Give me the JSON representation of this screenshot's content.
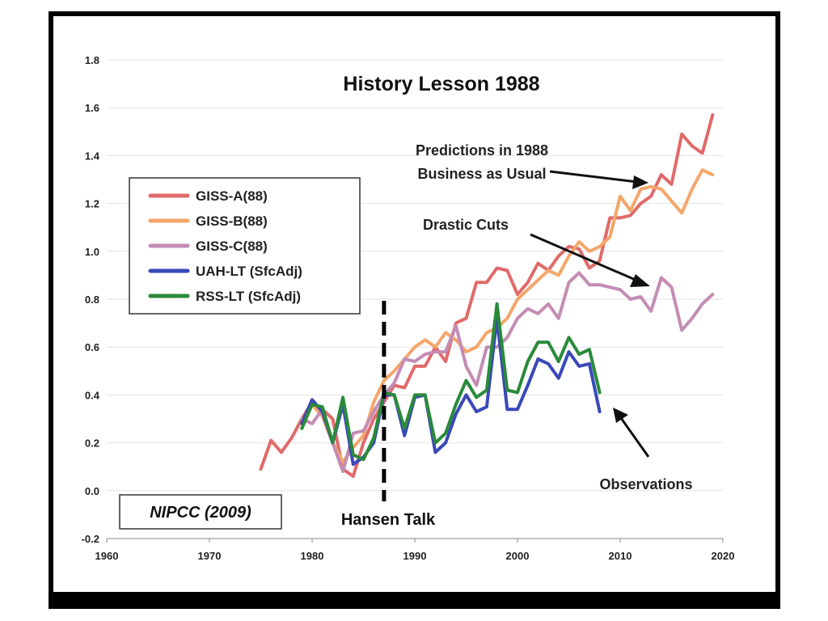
{
  "chart_data": {
    "type": "line",
    "title": "History Lesson 1988",
    "xlabel": "",
    "ylabel": "",
    "xlim": [
      1960,
      2020
    ],
    "ylim": [
      -0.2,
      1.8
    ],
    "xticks": [
      1960,
      1970,
      1980,
      1990,
      2000,
      2010,
      2020
    ],
    "yticks": [
      "-0.2",
      "0.0",
      "0.2",
      "0.4",
      "0.6",
      "0.8",
      "1.0",
      "1.2",
      "1.4",
      "1.6",
      "1.8"
    ],
    "grid": true,
    "legend_position": "left",
    "series": [
      {
        "name": "GISS-A(88)",
        "color": "#e06a6a",
        "x": [
          1975,
          1976,
          1977,
          1978,
          1979,
          1980,
          1981,
          1982,
          1983,
          1984,
          1985,
          1986,
          1987,
          1988,
          1989,
          1990,
          1991,
          1992,
          1993,
          1994,
          1995,
          1996,
          1997,
          1998,
          1999,
          2000,
          2001,
          2002,
          2003,
          2004,
          2005,
          2006,
          2007,
          2008,
          2009,
          2010,
          2011,
          2012,
          2013,
          2014,
          2015,
          2016,
          2017,
          2018,
          2019
        ],
        "y": [
          0.09,
          0.21,
          0.16,
          0.22,
          0.3,
          0.37,
          0.34,
          0.3,
          0.09,
          0.06,
          0.2,
          0.3,
          0.37,
          0.44,
          0.43,
          0.52,
          0.52,
          0.6,
          0.54,
          0.7,
          0.72,
          0.87,
          0.87,
          0.93,
          0.92,
          0.82,
          0.87,
          0.95,
          0.92,
          0.98,
          1.02,
          1.01,
          0.93,
          0.96,
          1.14,
          1.14,
          1.15,
          1.2,
          1.23,
          1.32,
          1.28,
          1.49,
          1.44,
          1.41,
          1.57
        ]
      },
      {
        "name": "GISS-B(88)",
        "color": "#f4a66a",
        "x": [
          1980,
          1981,
          1982,
          1983,
          1984,
          1985,
          1986,
          1987,
          1988,
          1989,
          1990,
          1991,
          1992,
          1993,
          1994,
          1995,
          1996,
          1997,
          1998,
          1999,
          2000,
          2001,
          2002,
          2003,
          2004,
          2005,
          2006,
          2007,
          2008,
          2009,
          2010,
          2011,
          2012,
          2013,
          2014,
          2015,
          2016,
          2017,
          2018,
          2019
        ],
        "y": [
          0.36,
          0.31,
          0.2,
          0.12,
          0.18,
          0.23,
          0.37,
          0.46,
          0.5,
          0.55,
          0.6,
          0.63,
          0.6,
          0.66,
          0.63,
          0.58,
          0.6,
          0.66,
          0.68,
          0.72,
          0.8,
          0.84,
          0.88,
          0.92,
          0.9,
          0.98,
          1.04,
          1.0,
          1.02,
          1.06,
          1.23,
          1.17,
          1.26,
          1.27,
          1.26,
          1.21,
          1.16,
          1.26,
          1.34,
          1.32
        ]
      },
      {
        "name": "GISS-C(88)",
        "color": "#c48cb4",
        "x": [
          1979,
          1980,
          1981,
          1982,
          1983,
          1984,
          1985,
          1986,
          1987,
          1988,
          1989,
          1990,
          1991,
          1992,
          1993,
          1994,
          1995,
          1996,
          1997,
          1998,
          1999,
          2000,
          2001,
          2002,
          2003,
          2004,
          2005,
          2006,
          2007,
          2008,
          2009,
          2010,
          2011,
          2012,
          2013,
          2014,
          2015,
          2016,
          2017,
          2018,
          2019
        ],
        "y": [
          0.3,
          0.28,
          0.34,
          0.2,
          0.08,
          0.24,
          0.25,
          0.33,
          0.4,
          0.45,
          0.55,
          0.54,
          0.57,
          0.58,
          0.58,
          0.69,
          0.52,
          0.44,
          0.6,
          0.6,
          0.64,
          0.72,
          0.76,
          0.74,
          0.78,
          0.72,
          0.87,
          0.91,
          0.86,
          0.86,
          0.85,
          0.84,
          0.8,
          0.81,
          0.75,
          0.89,
          0.85,
          0.67,
          0.72,
          0.78,
          0.82
        ]
      },
      {
        "name": "UAH-LT (SfcAdj)",
        "color": "#3a48b8",
        "x": [
          1979,
          1980,
          1981,
          1982,
          1983,
          1984,
          1985,
          1986,
          1987,
          1988,
          1989,
          1990,
          1991,
          1992,
          1993,
          1994,
          1995,
          1996,
          1997,
          1998,
          1999,
          2000,
          2001,
          2002,
          2003,
          2004,
          2005,
          2006,
          2007,
          2008
        ],
        "y": [
          0.28,
          0.38,
          0.33,
          0.2,
          0.36,
          0.11,
          0.14,
          0.2,
          0.4,
          0.4,
          0.23,
          0.39,
          0.4,
          0.16,
          0.2,
          0.32,
          0.4,
          0.33,
          0.35,
          0.72,
          0.34,
          0.34,
          0.44,
          0.55,
          0.53,
          0.47,
          0.58,
          0.52,
          0.53,
          0.33
        ]
      },
      {
        "name": "RSS-LT (SfcAdj)",
        "color": "#2a8a3a",
        "x": [
          1979,
          1980,
          1981,
          1982,
          1983,
          1984,
          1985,
          1986,
          1987,
          1988,
          1989,
          1990,
          1991,
          1992,
          1993,
          1994,
          1995,
          1996,
          1997,
          1998,
          1999,
          2000,
          2001,
          2002,
          2003,
          2004,
          2005,
          2006,
          2007,
          2008
        ],
        "y": [
          0.26,
          0.36,
          0.35,
          0.2,
          0.39,
          0.15,
          0.13,
          0.22,
          0.41,
          0.4,
          0.26,
          0.4,
          0.4,
          0.2,
          0.24,
          0.36,
          0.46,
          0.39,
          0.42,
          0.78,
          0.42,
          0.41,
          0.54,
          0.62,
          0.62,
          0.54,
          0.64,
          0.57,
          0.59,
          0.41
        ]
      }
    ],
    "annotations": {
      "predictions_line1": "Predictions in 1988",
      "predictions_line2": "Business as Usual",
      "drastic_cuts": "Drastic Cuts",
      "observations": "Observations",
      "hansen_talk": "Hansen Talk",
      "hansen_talk_year": 1987
    },
    "source_box": "NIPCC (2009)"
  }
}
